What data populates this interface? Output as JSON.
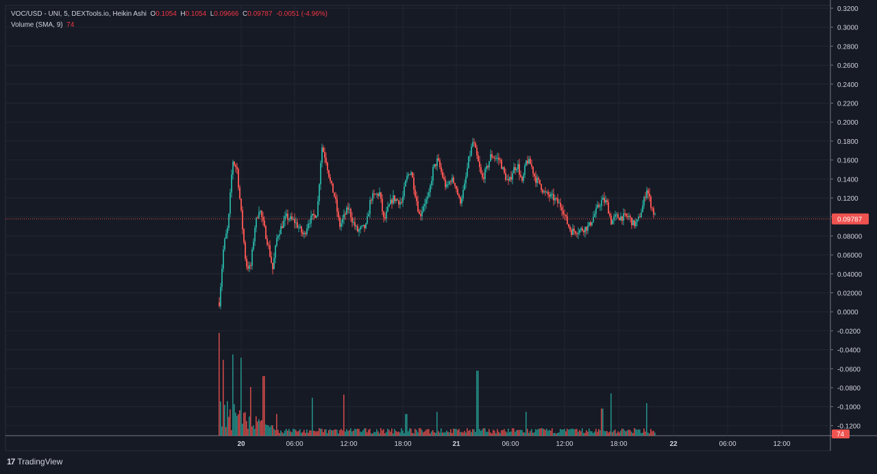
{
  "legend": {
    "symbol": "VOC/USD - UNI, 5, DEXTools.io, Heikin Ashi",
    "o_label": "O",
    "o_value": "0.1054",
    "h_label": "H",
    "h_value": "0.1054",
    "l_label": "L",
    "l_value": "0.09666",
    "c_label": "C",
    "c_value": "0.09787",
    "change": "-0.0051 (-4.96%)",
    "volume_label": "Volume (SMA, 9)",
    "volume_value": "74"
  },
  "footer": {
    "brand": "TradingView",
    "icon": "tradingview-logo-icon"
  },
  "colors": {
    "background": "#161a25",
    "grid": "#232733",
    "up": "#26a69a",
    "down": "#ef5350",
    "price_line": "#ef5350",
    "axis_text": "#d1d4dc"
  },
  "chart_data": {
    "type": "candlestick",
    "style": "Heikin Ashi",
    "grid": true,
    "y_axis": {
      "position": "right",
      "ticks": [
        "0.3200",
        "0.3000",
        "0.2800",
        "0.2600",
        "0.2400",
        "0.2200",
        "0.2000",
        "0.1800",
        "0.1600",
        "0.1400",
        "0.1200",
        "0.10000",
        "0.08000",
        "0.06000",
        "0.04000",
        "0.02000",
        "0.0000",
        "-0.0200",
        "-0.0400",
        "-0.0600",
        "-0.0800",
        "-0.1000",
        "-0.1200"
      ],
      "ylim": [
        -0.13,
        0.32
      ]
    },
    "x_axis": {
      "ticks": [
        "20",
        "06:00",
        "12:00",
        "18:00",
        "21",
        "06:00",
        "12:00",
        "18:00",
        "22",
        "06:00",
        "12:00"
      ],
      "bold_ticks": [
        "20",
        "21",
        "22"
      ]
    },
    "last_price": "0.09787",
    "last_volume": "74",
    "price_path": [
      {
        "t": "19 21:30",
        "v": 0.01
      },
      {
        "t": "19 22:00",
        "v": 0.07
      },
      {
        "t": "19 22:30",
        "v": 0.09
      },
      {
        "t": "19 23:00",
        "v": 0.16
      },
      {
        "t": "19 23:30",
        "v": 0.15
      },
      {
        "t": "20 00:00",
        "v": 0.1
      },
      {
        "t": "20 00:30",
        "v": 0.05
      },
      {
        "t": "20 01:00",
        "v": 0.045
      },
      {
        "t": "20 01:30",
        "v": 0.09
      },
      {
        "t": "20 02:00",
        "v": 0.11
      },
      {
        "t": "20 02:30",
        "v": 0.09
      },
      {
        "t": "20 03:00",
        "v": 0.07
      },
      {
        "t": "20 03:30",
        "v": 0.045
      },
      {
        "t": "20 04:00",
        "v": 0.08
      },
      {
        "t": "20 05:00",
        "v": 0.1
      },
      {
        "t": "20 06:00",
        "v": 0.095
      },
      {
        "t": "20 07:00",
        "v": 0.08
      },
      {
        "t": "20 07:30",
        "v": 0.095
      },
      {
        "t": "20 08:30",
        "v": 0.105
      },
      {
        "t": "20 09:00",
        "v": 0.175
      },
      {
        "t": "20 09:30",
        "v": 0.16
      },
      {
        "t": "20 10:00",
        "v": 0.135
      },
      {
        "t": "20 10:30",
        "v": 0.12
      },
      {
        "t": "20 11:00",
        "v": 0.09
      },
      {
        "t": "20 11:30",
        "v": 0.1
      },
      {
        "t": "20 12:00",
        "v": 0.11
      },
      {
        "t": "20 12:30",
        "v": 0.095
      },
      {
        "t": "20 13:00",
        "v": 0.085
      },
      {
        "t": "20 14:00",
        "v": 0.09
      },
      {
        "t": "20 14:30",
        "v": 0.12
      },
      {
        "t": "20 15:30",
        "v": 0.125
      },
      {
        "t": "20 16:00",
        "v": 0.095
      },
      {
        "t": "20 16:30",
        "v": 0.11
      },
      {
        "t": "20 17:00",
        "v": 0.12
      },
      {
        "t": "20 18:00",
        "v": 0.115
      },
      {
        "t": "20 18:30",
        "v": 0.14
      },
      {
        "t": "20 19:00",
        "v": 0.15
      },
      {
        "t": "20 19:30",
        "v": 0.125
      },
      {
        "t": "20 20:00",
        "v": 0.1
      },
      {
        "t": "20 20:30",
        "v": 0.115
      },
      {
        "t": "20 21:00",
        "v": 0.12
      },
      {
        "t": "20 21:30",
        "v": 0.15
      },
      {
        "t": "20 22:00",
        "v": 0.16
      },
      {
        "t": "20 23:00",
        "v": 0.13
      },
      {
        "t": "20 23:30",
        "v": 0.14
      },
      {
        "t": "21 00:00",
        "v": 0.135
      },
      {
        "t": "21 00:30",
        "v": 0.115
      },
      {
        "t": "21 01:00",
        "v": 0.13
      },
      {
        "t": "21 01:30",
        "v": 0.16
      },
      {
        "t": "21 02:00",
        "v": 0.18
      },
      {
        "t": "21 02:30",
        "v": 0.16
      },
      {
        "t": "21 03:00",
        "v": 0.14
      },
      {
        "t": "21 03:30",
        "v": 0.15
      },
      {
        "t": "21 04:00",
        "v": 0.165
      },
      {
        "t": "21 05:00",
        "v": 0.16
      },
      {
        "t": "21 05:30",
        "v": 0.145
      },
      {
        "t": "21 06:00",
        "v": 0.135
      },
      {
        "t": "21 06:30",
        "v": 0.15
      },
      {
        "t": "21 07:00",
        "v": 0.155
      },
      {
        "t": "21 07:30",
        "v": 0.135
      },
      {
        "t": "21 08:00",
        "v": 0.16
      },
      {
        "t": "21 08:30",
        "v": 0.155
      },
      {
        "t": "21 09:00",
        "v": 0.14
      },
      {
        "t": "21 09:30",
        "v": 0.135
      },
      {
        "t": "21 10:00",
        "v": 0.125
      },
      {
        "t": "21 11:00",
        "v": 0.12
      },
      {
        "t": "21 12:00",
        "v": 0.11
      },
      {
        "t": "21 12:30",
        "v": 0.095
      },
      {
        "t": "21 13:00",
        "v": 0.085
      },
      {
        "t": "21 14:00",
        "v": 0.086
      },
      {
        "t": "21 15:00",
        "v": 0.09
      },
      {
        "t": "21 15:30",
        "v": 0.1
      },
      {
        "t": "21 16:00",
        "v": 0.11
      },
      {
        "t": "21 16:30",
        "v": 0.118
      },
      {
        "t": "21 17:00",
        "v": 0.115
      },
      {
        "t": "21 17:30",
        "v": 0.095
      },
      {
        "t": "21 18:00",
        "v": 0.1
      },
      {
        "t": "21 19:30",
        "v": 0.1
      },
      {
        "t": "21 20:00",
        "v": 0.092
      },
      {
        "t": "21 20:30",
        "v": 0.095
      },
      {
        "t": "21 21:00",
        "v": 0.11
      },
      {
        "t": "21 21:30",
        "v": 0.13
      },
      {
        "t": "21 22:00",
        "v": 0.112
      },
      {
        "t": "21 22:30",
        "v": 0.098
      }
    ],
    "volume_spikes": [
      {
        "t": "19 21:30",
        "v": 0.95
      },
      {
        "t": "19 22:00",
        "v": 0.7
      },
      {
        "t": "19 23:00",
        "v": 0.75
      },
      {
        "t": "20 00:00",
        "v": 0.72
      },
      {
        "t": "20 01:00",
        "v": 0.45
      },
      {
        "t": "20 02:30",
        "v": 0.55
      },
      {
        "t": "20 04:00",
        "v": 0.2
      },
      {
        "t": "20 08:00",
        "v": 0.35
      },
      {
        "t": "20 11:30",
        "v": 0.38
      },
      {
        "t": "20 18:30",
        "v": 0.2
      },
      {
        "t": "20 22:00",
        "v": 0.22
      },
      {
        "t": "21 02:30",
        "v": 0.6
      },
      {
        "t": "21 08:00",
        "v": 0.22
      },
      {
        "t": "21 16:30",
        "v": 0.25
      },
      {
        "t": "21 17:30",
        "v": 0.39
      },
      {
        "t": "21 21:30",
        "v": 0.3
      }
    ]
  }
}
